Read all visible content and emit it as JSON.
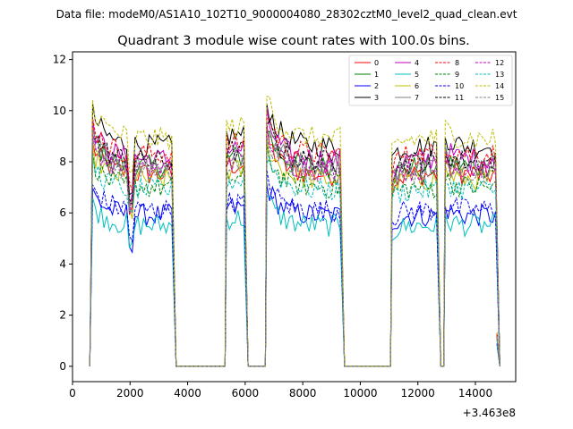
{
  "chart_data": {
    "type": "line",
    "suptitle": "Data file: modeM0/AS1A10_102T10_9000004080_28302cztM0_level2_quad_clean.evt",
    "title": "Quadrant 3 module wise count rates with 100.0s bins.",
    "xlabel": "",
    "ylabel": "",
    "x_offset_label": "+3.463e8",
    "xlim": [
      0,
      15400
    ],
    "ylim": [
      -0.6,
      12.3
    ],
    "xticks": [
      0,
      2000,
      4000,
      6000,
      8000,
      10000,
      12000,
      14000
    ],
    "yticks": [
      0,
      2,
      4,
      6,
      8,
      10,
      12
    ],
    "grid": false,
    "legend_position": "top-right",
    "legend_columns": 4,
    "segments": [
      {
        "x0": 700,
        "x1": 3450,
        "peak": 1.0,
        "start_boost": 1.15,
        "dip_at": 2000
      },
      {
        "x0": 5350,
        "x1": 5950,
        "peak": 1.05,
        "start_boost": 1.0,
        "dip_at": null
      },
      {
        "x0": 6750,
        "x1": 9300,
        "peak": 1.0,
        "start_boost": 1.2,
        "dip_at": null
      },
      {
        "x0": 11100,
        "x1": 12650,
        "peak": 1.0,
        "start_boost": 0.95,
        "dip_at": null
      },
      {
        "x0": 12950,
        "x1": 14700,
        "peak": 1.0,
        "start_boost": 1.05,
        "dip_at": null
      }
    ],
    "series": [
      {
        "name": "0",
        "color": "#ff0000",
        "dash": "solid",
        "level": 7.5
      },
      {
        "name": "1",
        "color": "#008000",
        "dash": "solid",
        "level": 7.8
      },
      {
        "name": "2",
        "color": "#0000ff",
        "dash": "solid",
        "level": 5.9
      },
      {
        "name": "3",
        "color": "#000000",
        "dash": "solid",
        "level": 8.6
      },
      {
        "name": "4",
        "color": "#bf00bf",
        "dash": "solid",
        "level": 8.1
      },
      {
        "name": "5",
        "color": "#00bfbf",
        "dash": "solid",
        "level": 5.5
      },
      {
        "name": "6",
        "color": "#bfbf00",
        "dash": "solid",
        "level": 7.3
      },
      {
        "name": "7",
        "color": "#808080",
        "dash": "solid",
        "level": 7.9
      },
      {
        "name": "8",
        "color": "#ff0000",
        "dash": "dashed",
        "level": 8.3
      },
      {
        "name": "9",
        "color": "#008000",
        "dash": "dashed",
        "level": 7.0
      },
      {
        "name": "10",
        "color": "#0000ff",
        "dash": "dashed",
        "level": 6.1
      },
      {
        "name": "11",
        "color": "#000000",
        "dash": "dashed",
        "level": 8.0
      },
      {
        "name": "12",
        "color": "#bf00bf",
        "dash": "dashed",
        "level": 7.7
      },
      {
        "name": "13",
        "color": "#00bfbf",
        "dash": "dashed",
        "level": 6.9
      },
      {
        "name": "14",
        "color": "#bfbf00",
        "dash": "dashed",
        "level": 8.9
      },
      {
        "name": "15",
        "color": "#808080",
        "dash": "dashed",
        "level": 7.6
      }
    ]
  }
}
